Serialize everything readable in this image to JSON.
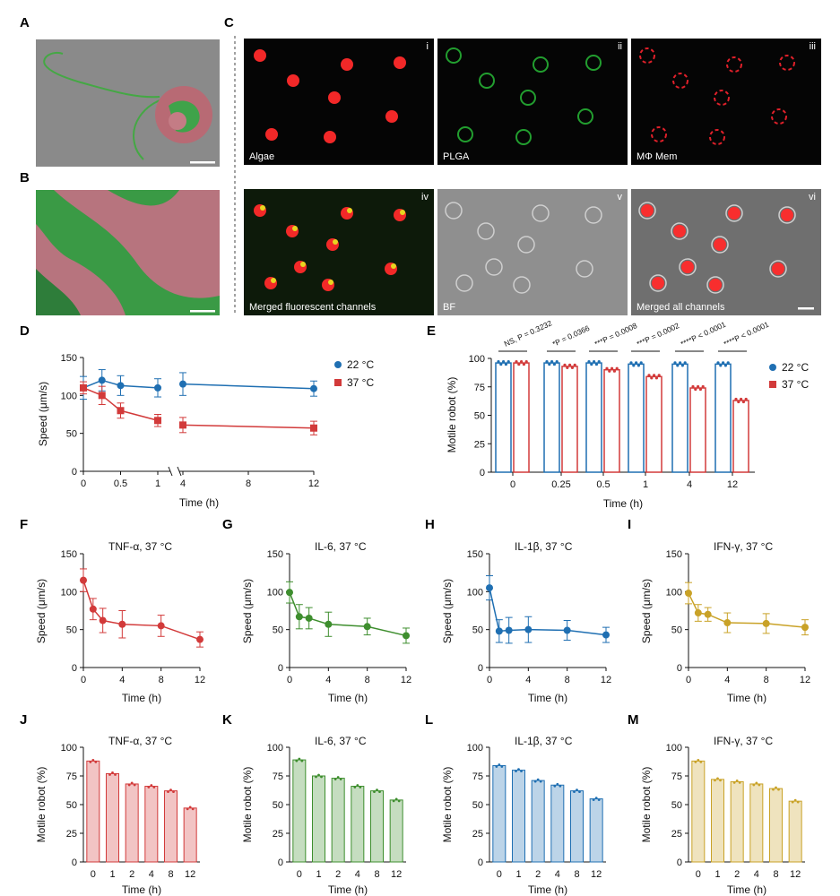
{
  "panel_labels": [
    "A",
    "B",
    "C",
    "D",
    "E",
    "F",
    "G",
    "H",
    "I",
    "J",
    "K",
    "L",
    "M"
  ],
  "micrographs": {
    "C": {
      "tiles": [
        {
          "roman": "i",
          "caption": "Algae"
        },
        {
          "roman": "ii",
          "caption": "PLGA"
        },
        {
          "roman": "iii",
          "caption": "MΦ Mem"
        },
        {
          "roman": "iv",
          "caption": "Merged fluorescent channels"
        },
        {
          "roman": "v",
          "caption": "BF"
        },
        {
          "roman": "vi",
          "caption": "Merged all channels"
        }
      ]
    }
  },
  "chart_data": [
    {
      "panel": "D",
      "type": "line",
      "xlabel": "Time (h)",
      "ylabel": "Speed (μm/s)",
      "x_ticks_left": [
        "0",
        "0.5",
        "1"
      ],
      "x_ticks_right": [
        "4",
        "8",
        "12"
      ],
      "ylim": [
        0,
        150
      ],
      "y_ticks": [
        "0",
        "50",
        "100",
        "150"
      ],
      "axis_break": true,
      "legend_position": "right",
      "series": [
        {
          "name": "22 °C",
          "color": "#1f6fb2",
          "marker": "circle",
          "x": [
            0,
            0.25,
            0.5,
            1,
            4,
            12
          ],
          "values": [
            110,
            120,
            113,
            110,
            115,
            109
          ],
          "err": [
            15,
            14,
            13,
            12,
            15,
            10
          ]
        },
        {
          "name": "37 °C",
          "color": "#d23a3a",
          "marker": "square",
          "x": [
            0,
            0.25,
            0.5,
            1,
            4,
            12
          ],
          "values": [
            110,
            100,
            80,
            67,
            61,
            57
          ],
          "err": [
            8,
            12,
            10,
            8,
            10,
            9
          ]
        }
      ]
    },
    {
      "panel": "E",
      "type": "bar",
      "xlabel": "Time (h)",
      "ylabel": "Motile robot (%)",
      "categories": [
        "0",
        "0.25",
        "0.5",
        "1",
        "4",
        "12"
      ],
      "ylim": [
        0,
        100
      ],
      "y_ticks": [
        "0",
        "25",
        "50",
        "75",
        "100"
      ],
      "legend_position": "right",
      "series": [
        {
          "name": "22 °C",
          "color": "#1f6fb2",
          "values": [
            96,
            96,
            96,
            95,
            95,
            95
          ]
        },
        {
          "name": "37 °C",
          "color": "#d23a3a",
          "values": [
            96,
            93,
            90,
            84,
            74,
            63
          ]
        }
      ],
      "significance": [
        "NS, P = 0.3232",
        "*P = 0.0366",
        "***P = 0.0008",
        "***P = 0.0002",
        "****P < 0.0001",
        "****P < 0.0001"
      ]
    },
    {
      "panel": "F",
      "type": "line",
      "title": "TNF-α, 37 °C",
      "color": "#d23a3a",
      "xlabel": "Time (h)",
      "ylabel": "Speed (μm/s)",
      "ylim": [
        0,
        150
      ],
      "y_ticks": [
        "0",
        "50",
        "100",
        "150"
      ],
      "x_ticks": [
        "0",
        "4",
        "8",
        "12"
      ],
      "x": [
        0,
        1,
        2,
        4,
        8,
        12
      ],
      "values": [
        115,
        77,
        62,
        57,
        55,
        37
      ],
      "err": [
        15,
        14,
        16,
        18,
        14,
        10
      ]
    },
    {
      "panel": "G",
      "type": "line",
      "title": "IL-6, 37 °C",
      "color": "#3e8e2e",
      "xlabel": "Time (h)",
      "ylabel": "Speed (μm/s)",
      "ylim": [
        0,
        150
      ],
      "y_ticks": [
        "0",
        "50",
        "100",
        "150"
      ],
      "x_ticks": [
        "0",
        "4",
        "8",
        "12"
      ],
      "x": [
        0,
        1,
        2,
        4,
        8,
        12
      ],
      "values": [
        99,
        67,
        65,
        57,
        54,
        42
      ],
      "err": [
        14,
        16,
        14,
        16,
        11,
        10
      ]
    },
    {
      "panel": "H",
      "type": "line",
      "title": "IL-1β, 37 °C",
      "color": "#1f6fb2",
      "xlabel": "Time (h)",
      "ylabel": "Speed (μm/s)",
      "ylim": [
        0,
        150
      ],
      "y_ticks": [
        "0",
        "50",
        "100",
        "150"
      ],
      "x_ticks": [
        "0",
        "4",
        "8",
        "12"
      ],
      "x": [
        0,
        1,
        2,
        4,
        8,
        12
      ],
      "values": [
        105,
        48,
        49,
        50,
        49,
        43
      ],
      "err": [
        16,
        15,
        17,
        17,
        13,
        10
      ]
    },
    {
      "panel": "I",
      "type": "line",
      "title": "IFN-γ, 37 °C",
      "color": "#c9a227",
      "xlabel": "Time (h)",
      "ylabel": "Speed (μm/s)",
      "ylim": [
        0,
        150
      ],
      "y_ticks": [
        "0",
        "50",
        "100",
        "150"
      ],
      "x_ticks": [
        "0",
        "4",
        "8",
        "12"
      ],
      "x": [
        0,
        1,
        2,
        4,
        8,
        12
      ],
      "values": [
        98,
        72,
        70,
        59,
        58,
        53
      ],
      "err": [
        14,
        11,
        9,
        13,
        13,
        10
      ]
    },
    {
      "panel": "J",
      "type": "bar",
      "title": "TNF-α, 37 °C",
      "color": "#d23a3a",
      "xlabel": "Time (h)",
      "ylabel": "Motile robot (%)",
      "ylim": [
        0,
        100
      ],
      "y_ticks": [
        "0",
        "25",
        "50",
        "75",
        "100"
      ],
      "categories": [
        "0",
        "1",
        "2",
        "4",
        "8",
        "12"
      ],
      "values": [
        88,
        77,
        68,
        66,
        62,
        47
      ]
    },
    {
      "panel": "K",
      "type": "bar",
      "title": "IL-6, 37 °C",
      "color": "#3e8e2e",
      "xlabel": "Time (h)",
      "ylabel": "Motile robot (%)",
      "ylim": [
        0,
        100
      ],
      "y_ticks": [
        "0",
        "25",
        "50",
        "75",
        "100"
      ],
      "categories": [
        "0",
        "1",
        "2",
        "4",
        "8",
        "12"
      ],
      "values": [
        89,
        75,
        73,
        66,
        62,
        54
      ]
    },
    {
      "panel": "L",
      "type": "bar",
      "title": "IL-1β, 37 °C",
      "color": "#1f6fb2",
      "xlabel": "Time (h)",
      "ylabel": "Motile robot (%)",
      "ylim": [
        0,
        100
      ],
      "y_ticks": [
        "0",
        "25",
        "50",
        "75",
        "100"
      ],
      "categories": [
        "0",
        "1",
        "2",
        "4",
        "8",
        "12"
      ],
      "values": [
        84,
        80,
        71,
        67,
        62,
        55
      ]
    },
    {
      "panel": "M",
      "type": "bar",
      "title": "IFN-γ, 37 °C",
      "color": "#c9a227",
      "xlabel": "Time (h)",
      "ylabel": "Motile robot (%)",
      "ylim": [
        0,
        100
      ],
      "y_ticks": [
        "0",
        "25",
        "50",
        "75",
        "100"
      ],
      "categories": [
        "0",
        "1",
        "2",
        "4",
        "8",
        "12"
      ],
      "values": [
        88,
        72,
        70,
        68,
        64,
        53
      ]
    }
  ]
}
